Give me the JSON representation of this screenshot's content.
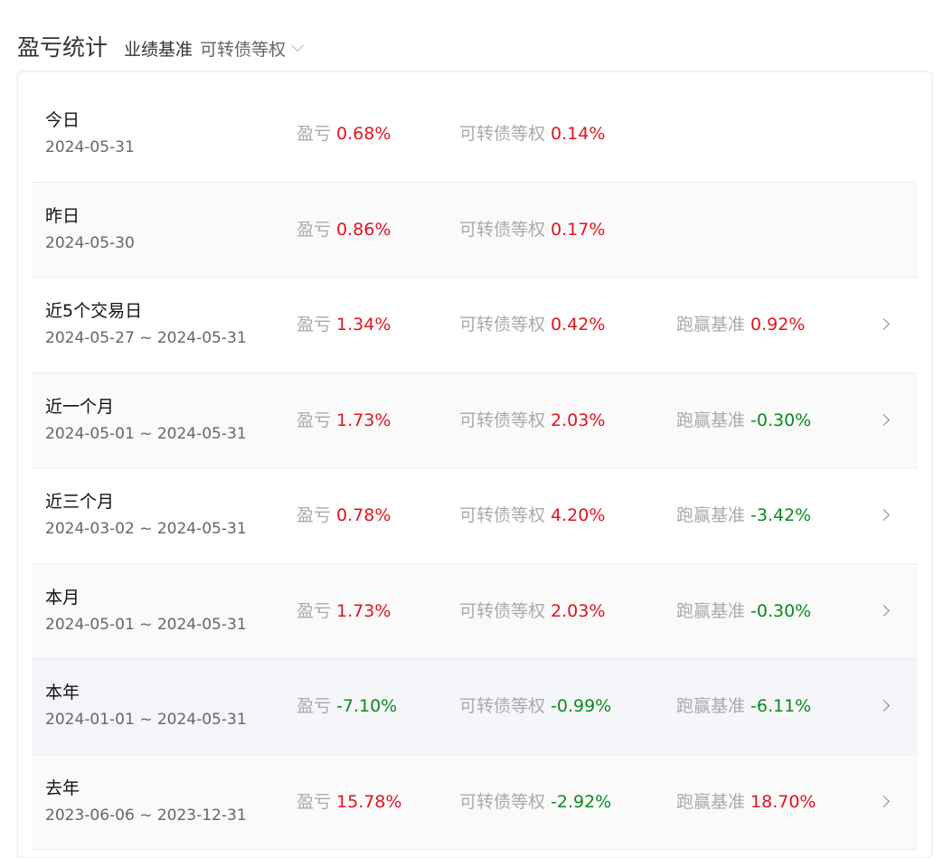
{
  "header": {
    "title": "盈亏统计",
    "benchmark_label": "业绩基准",
    "benchmark_value": "可转债等权"
  },
  "colors": {
    "positive": "#e0141e",
    "negative": "#0a8a1e"
  },
  "rows": [
    {
      "name": "今日",
      "date": "2024-05-31",
      "pl_label": "盈亏",
      "pl": "0.68%",
      "bench_label": "可转债等权",
      "bench": "0.14%"
    },
    {
      "name": "昨日",
      "date": "2024-05-30",
      "pl_label": "盈亏",
      "pl": "0.86%",
      "bench_label": "可转债等权",
      "bench": "0.17%"
    },
    {
      "name": "近5个交易日",
      "date": "2024-05-27 ~ 2024-05-31",
      "pl_label": "盈亏",
      "pl": "1.34%",
      "bench_label": "可转债等权",
      "bench": "0.42%",
      "excess_label": "跑赢基准",
      "excess": "0.92%"
    },
    {
      "name": "近一个月",
      "date": "2024-05-01 ~ 2024-05-31",
      "pl_label": "盈亏",
      "pl": "1.73%",
      "bench_label": "可转债等权",
      "bench": "2.03%",
      "excess_label": "跑赢基准",
      "excess": "-0.30%"
    },
    {
      "name": "近三个月",
      "date": "2024-03-02 ~ 2024-05-31",
      "pl_label": "盈亏",
      "pl": "0.78%",
      "bench_label": "可转债等权",
      "bench": "4.20%",
      "excess_label": "跑赢基准",
      "excess": "-3.42%"
    },
    {
      "name": "本月",
      "date": "2024-05-01 ~ 2024-05-31",
      "pl_label": "盈亏",
      "pl": "1.73%",
      "bench_label": "可转债等权",
      "bench": "2.03%",
      "excess_label": "跑赢基准",
      "excess": "-0.30%"
    },
    {
      "name": "本年",
      "date": "2024-01-01 ~ 2024-05-31",
      "pl_label": "盈亏",
      "pl": "-7.10%",
      "bench_label": "可转债等权",
      "bench": "-0.99%",
      "excess_label": "跑赢基准",
      "excess": "-6.11%"
    },
    {
      "name": "去年",
      "date": "2023-06-06 ~ 2023-12-31",
      "pl_label": "盈亏",
      "pl": "15.78%",
      "bench_label": "可转债等权",
      "bench": "-2.92%",
      "excess_label": "跑赢基准",
      "excess": "18.70%"
    }
  ]
}
